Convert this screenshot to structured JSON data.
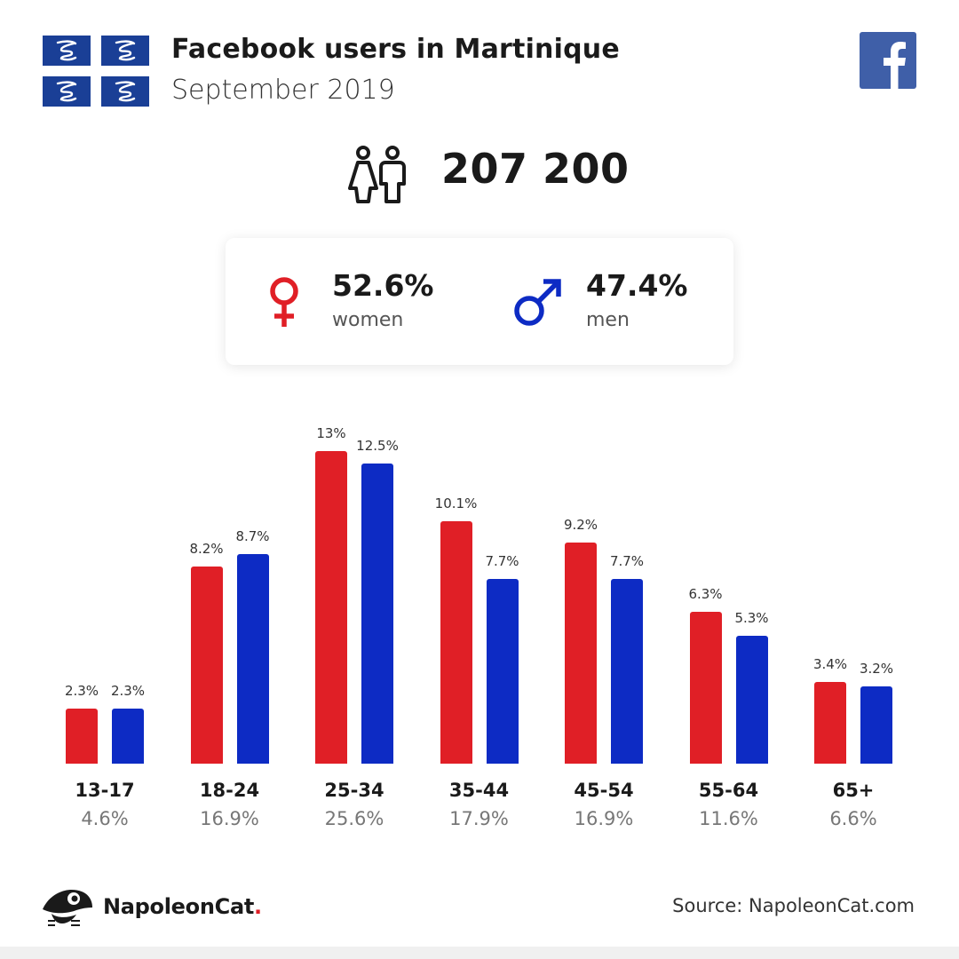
{
  "header": {
    "title": "Facebook users in Martinique",
    "subtitle": "September 2019"
  },
  "total_users": "207 200",
  "gender": {
    "women_pct": "52.6%",
    "women_label": "women",
    "men_pct": "47.4%",
    "men_label": "men"
  },
  "colors": {
    "women": "#e01f26",
    "men": "#0d2bc4",
    "flag_blue": "#1a3f96",
    "facebook_blue": "#3f5fa8"
  },
  "chart_data": {
    "type": "bar",
    "categories": [
      "13-17",
      "18-24",
      "25-34",
      "35-44",
      "45-54",
      "55-64",
      "65+"
    ],
    "category_totals": [
      "4.6%",
      "16.9%",
      "25.6%",
      "17.9%",
      "16.9%",
      "11.6%",
      "6.6%"
    ],
    "series": [
      {
        "name": "women",
        "values": [
          2.3,
          8.2,
          13,
          10.1,
          9.2,
          6.3,
          3.4
        ],
        "labels": [
          "2.3%",
          "8.2%",
          "13%",
          "10.1%",
          "9.2%",
          "6.3%",
          "3.4%"
        ]
      },
      {
        "name": "men",
        "values": [
          2.3,
          8.7,
          12.5,
          7.7,
          7.7,
          5.3,
          3.2
        ],
        "labels": [
          "2.3%",
          "8.7%",
          "12.5%",
          "7.7%",
          "7.7%",
          "5.3%",
          "3.2%"
        ]
      }
    ],
    "ylim": [
      0,
      13
    ]
  },
  "footer": {
    "brand": "NapoleonCat",
    "brand_dot": ".",
    "source": "Source: NapoleonCat.com"
  }
}
